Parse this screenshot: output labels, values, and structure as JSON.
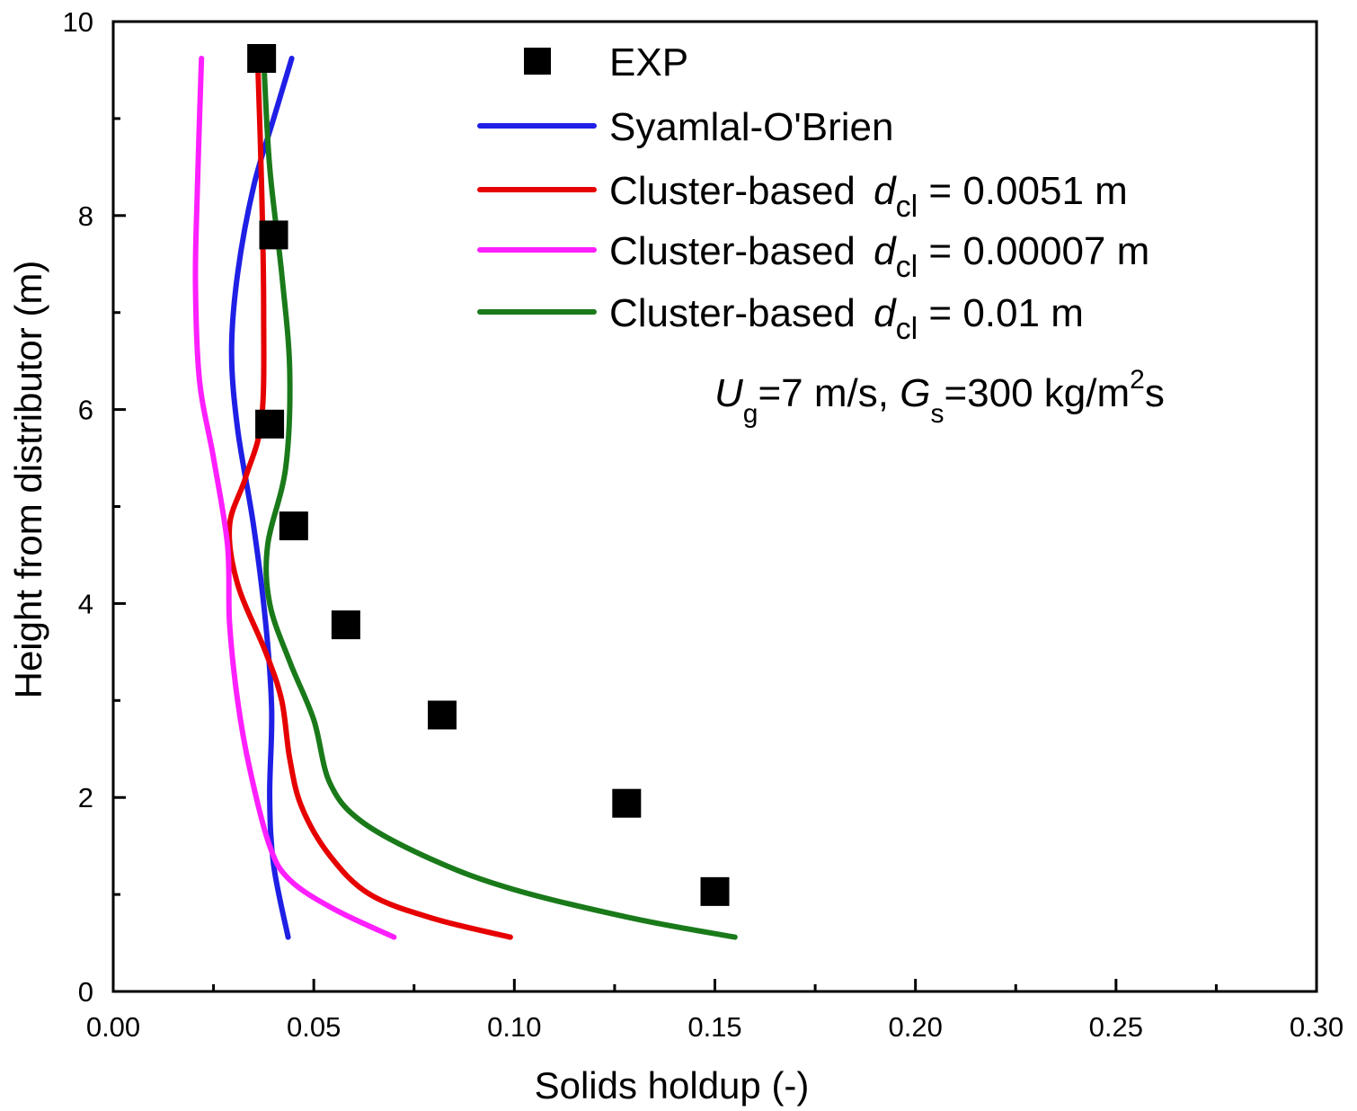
{
  "chart_data": {
    "type": "scatter",
    "xlabel": "Solids holdup (-)",
    "ylabel": "Height from distributor (m)",
    "xlim": [
      0.0,
      0.3
    ],
    "ylim": [
      0,
      10
    ],
    "xticks": [
      "0.00",
      "0.05",
      "0.10",
      "0.15",
      "0.20",
      "0.25",
      "0.30"
    ],
    "yticks": [
      "0",
      "2",
      "4",
      "6",
      "8",
      "10"
    ],
    "grid": false,
    "legend_position": "top-right",
    "series": [
      {
        "name": "EXP",
        "kind": "marker",
        "marker": "square",
        "color": "#000000",
        "points": [
          {
            "x": 0.037,
            "y": 9.62
          },
          {
            "x": 0.04,
            "y": 7.8
          },
          {
            "x": 0.039,
            "y": 5.85
          },
          {
            "x": 0.045,
            "y": 4.8
          },
          {
            "x": 0.058,
            "y": 3.78
          },
          {
            "x": 0.082,
            "y": 2.85
          },
          {
            "x": 0.128,
            "y": 1.94
          },
          {
            "x": 0.15,
            "y": 1.03
          }
        ]
      },
      {
        "name": "Syamlal-O'Brien",
        "kind": "line",
        "color": "#1f1fe6",
        "points": [
          {
            "x": 0.0436,
            "y": 0.56
          },
          {
            "x": 0.04,
            "y": 1.3
          },
          {
            "x": 0.039,
            "y": 2.0
          },
          {
            "x": 0.0395,
            "y": 2.9
          },
          {
            "x": 0.038,
            "y": 3.8
          },
          {
            "x": 0.035,
            "y": 4.8
          },
          {
            "x": 0.031,
            "y": 5.8
          },
          {
            "x": 0.0295,
            "y": 6.6
          },
          {
            "x": 0.031,
            "y": 7.4
          },
          {
            "x": 0.035,
            "y": 8.3
          },
          {
            "x": 0.04,
            "y": 9.0
          },
          {
            "x": 0.0445,
            "y": 9.62
          }
        ]
      },
      {
        "name": "Cluster-based",
        "subscript": "cl",
        "equals_value": "= 0.0051 m",
        "kind": "line",
        "color": "#e60000",
        "points": [
          {
            "x": 0.099,
            "y": 0.56
          },
          {
            "x": 0.08,
            "y": 0.75
          },
          {
            "x": 0.064,
            "y": 1.0
          },
          {
            "x": 0.054,
            "y": 1.4
          },
          {
            "x": 0.047,
            "y": 1.9
          },
          {
            "x": 0.044,
            "y": 2.4
          },
          {
            "x": 0.042,
            "y": 3.0
          },
          {
            "x": 0.038,
            "y": 3.5
          },
          {
            "x": 0.031,
            "y": 4.2
          },
          {
            "x": 0.029,
            "y": 4.8
          },
          {
            "x": 0.033,
            "y": 5.3
          },
          {
            "x": 0.037,
            "y": 5.9
          },
          {
            "x": 0.0375,
            "y": 7.0
          },
          {
            "x": 0.037,
            "y": 8.3
          },
          {
            "x": 0.036,
            "y": 9.62
          }
        ]
      },
      {
        "name": "Cluster-based",
        "subscript": "cl",
        "equals_value": "= 0.00007 m",
        "kind": "line",
        "color": "#ff1fff",
        "points": [
          {
            "x": 0.07,
            "y": 0.56
          },
          {
            "x": 0.055,
            "y": 0.85
          },
          {
            "x": 0.044,
            "y": 1.15
          },
          {
            "x": 0.039,
            "y": 1.5
          },
          {
            "x": 0.034,
            "y": 2.3
          },
          {
            "x": 0.031,
            "y": 3.0
          },
          {
            "x": 0.029,
            "y": 3.8
          },
          {
            "x": 0.0285,
            "y": 4.6
          },
          {
            "x": 0.025,
            "y": 5.5
          },
          {
            "x": 0.0215,
            "y": 6.3
          },
          {
            "x": 0.0205,
            "y": 7.3
          },
          {
            "x": 0.021,
            "y": 8.3
          },
          {
            "x": 0.022,
            "y": 9.62
          }
        ]
      },
      {
        "name": "Cluster-based",
        "subscript": "cl",
        "equals_value": "= 0.01 m",
        "kind": "line",
        "color": "#1a7a1a",
        "points": [
          {
            "x": 0.155,
            "y": 0.56
          },
          {
            "x": 0.13,
            "y": 0.75
          },
          {
            "x": 0.1,
            "y": 1.05
          },
          {
            "x": 0.08,
            "y": 1.35
          },
          {
            "x": 0.062,
            "y": 1.75
          },
          {
            "x": 0.054,
            "y": 2.15
          },
          {
            "x": 0.05,
            "y": 2.8
          },
          {
            "x": 0.044,
            "y": 3.4
          },
          {
            "x": 0.039,
            "y": 4.0
          },
          {
            "x": 0.0385,
            "y": 4.6
          },
          {
            "x": 0.043,
            "y": 5.4
          },
          {
            "x": 0.044,
            "y": 6.4
          },
          {
            "x": 0.042,
            "y": 7.4
          },
          {
            "x": 0.039,
            "y": 8.5
          },
          {
            "x": 0.0375,
            "y": 9.62
          }
        ]
      }
    ],
    "annotation": {
      "u_symbol": "U",
      "u_sub": "g",
      "u_value": "=7 m/s,",
      "g_symbol": "G",
      "g_sub": "s",
      "g_value": "=300 kg/m",
      "g_sup": "2",
      "g_tail": "s"
    }
  }
}
